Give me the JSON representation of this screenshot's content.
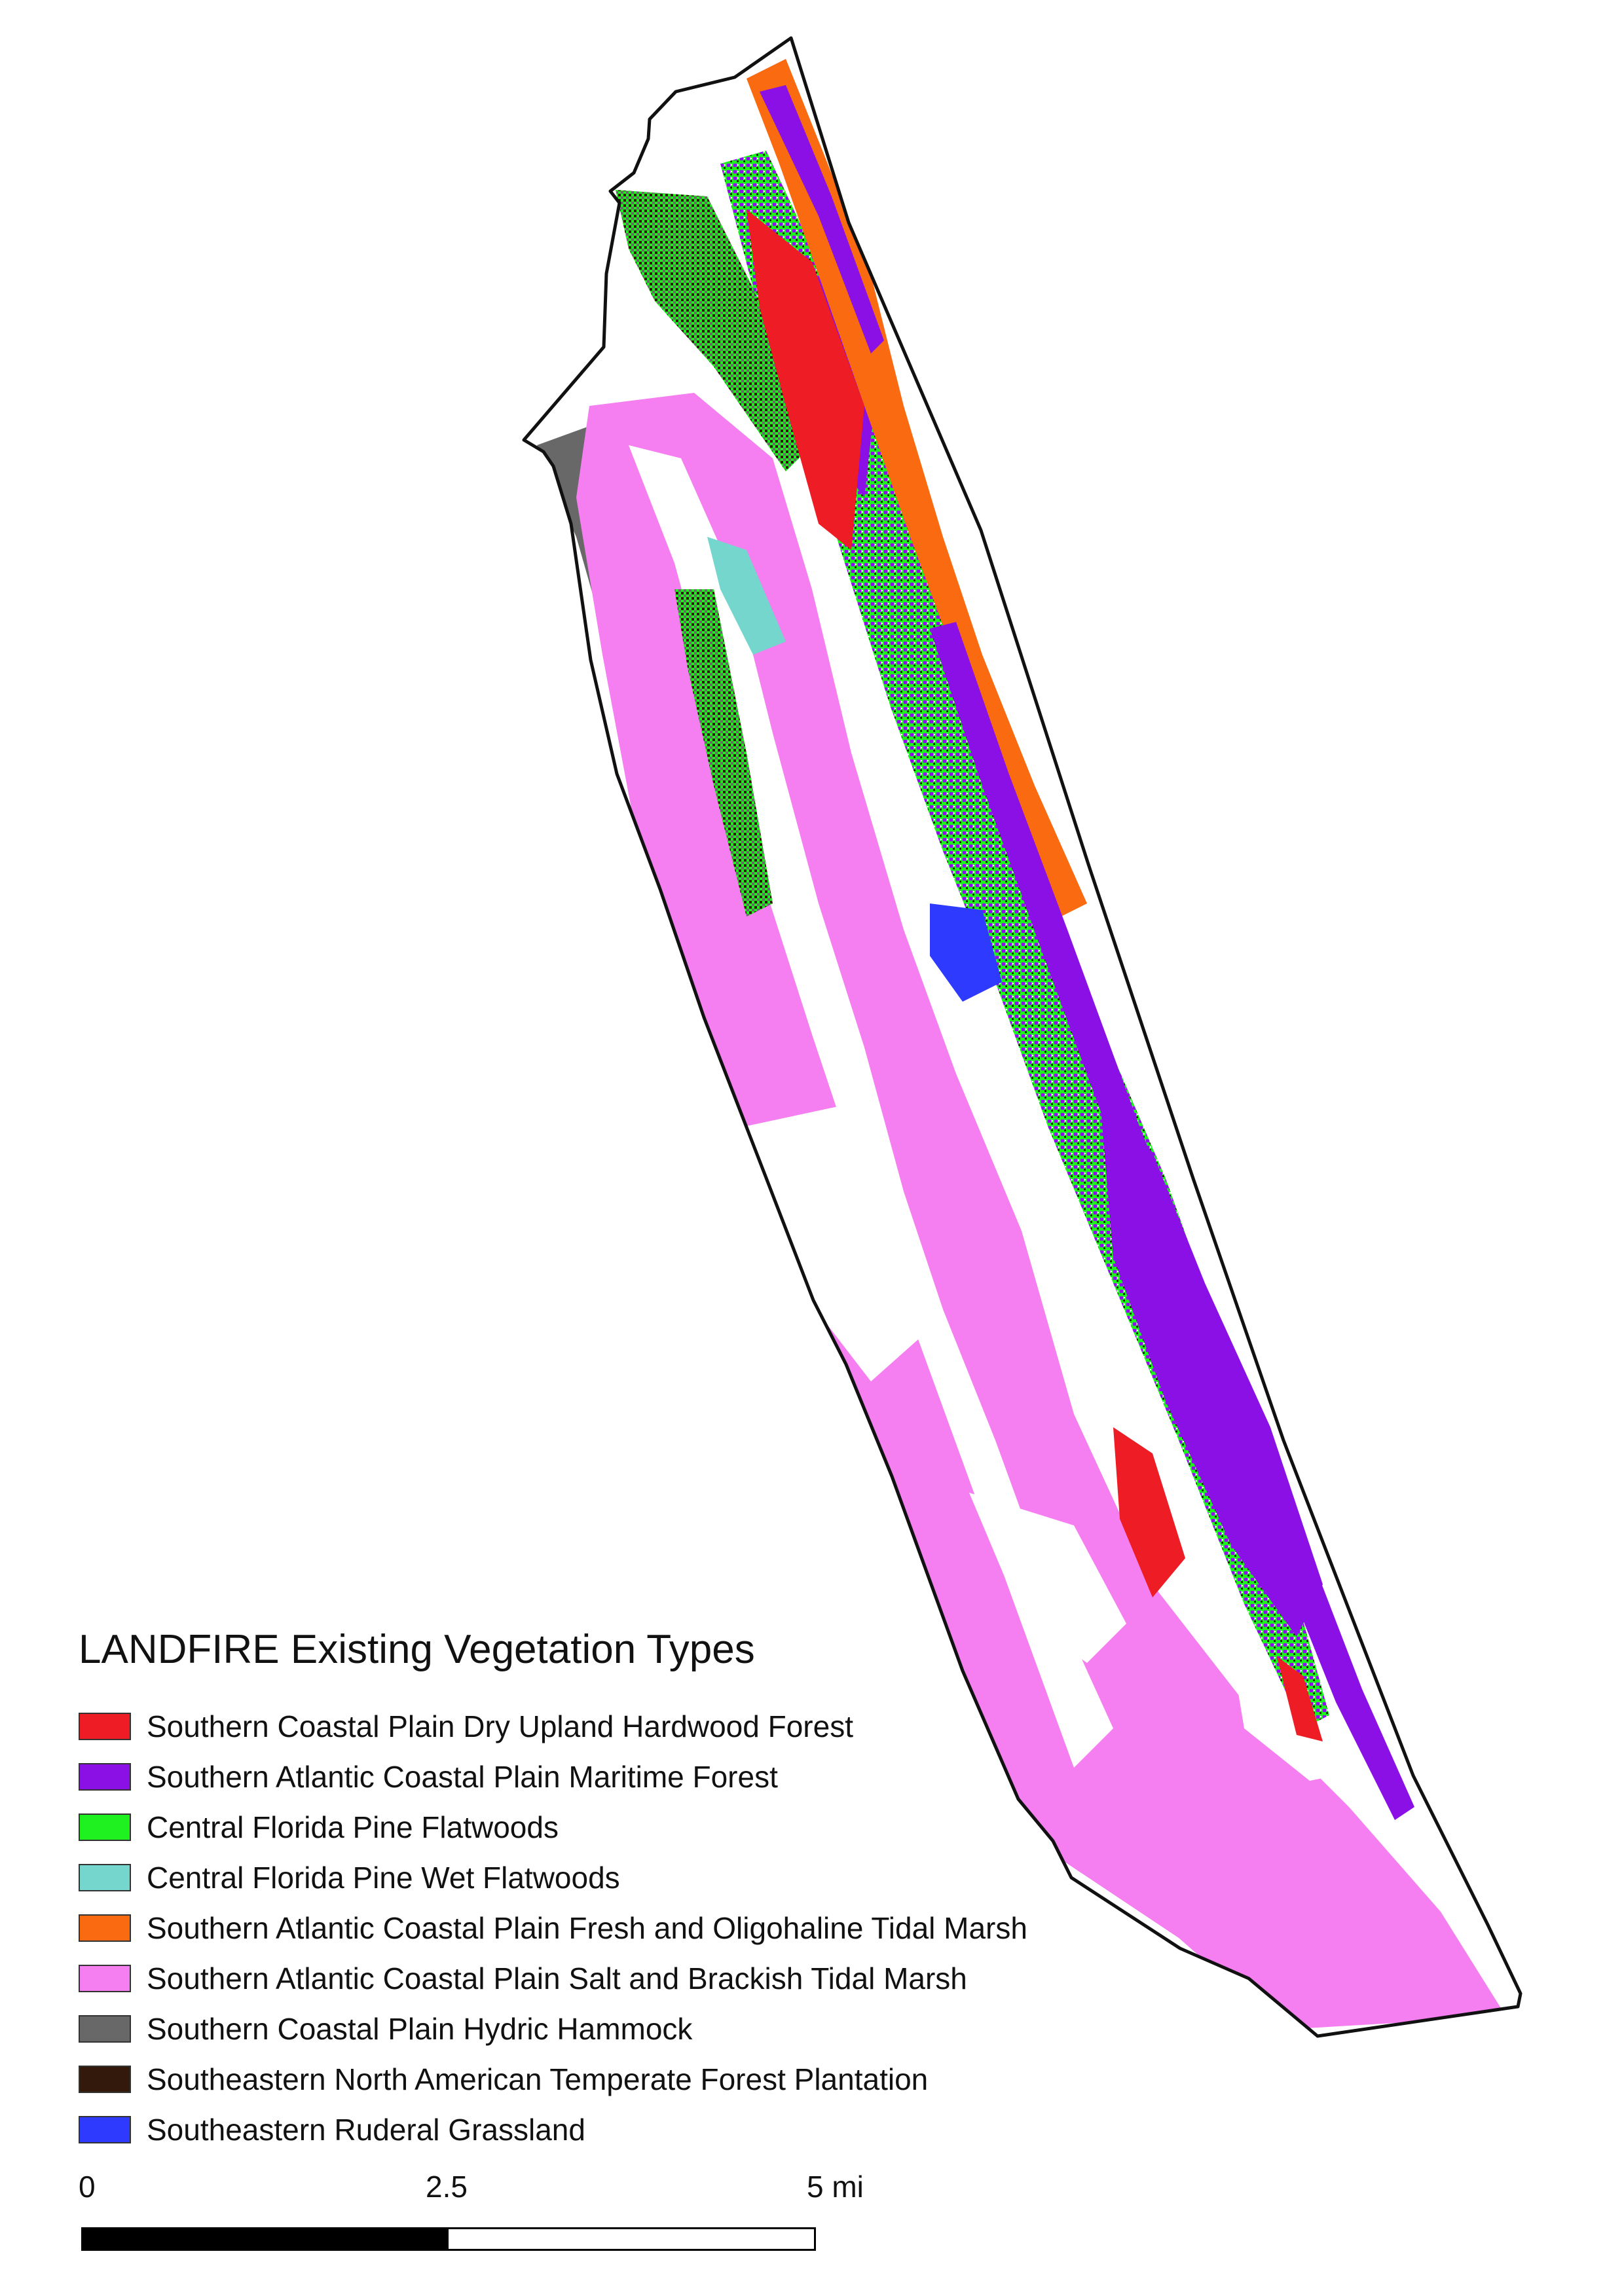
{
  "legend": {
    "title": "LANDFIRE Existing Vegetation Types",
    "items": [
      {
        "label": "Southern Coastal Plain Dry Upland Hardwood Forest",
        "color": "#ee1c25"
      },
      {
        "label": "Southern Atlantic Coastal Plain Maritime Forest",
        "color": "#8a10e6"
      },
      {
        "label": "Central Florida Pine Flatwoods",
        "color": "#1ff01f"
      },
      {
        "label": "Central Florida Pine Wet Flatwoods",
        "color": "#74d6cc"
      },
      {
        "label": "Southern Atlantic Coastal Plain Fresh and Oligohaline Tidal Marsh",
        "color": "#fa6a10"
      },
      {
        "label": "Southern Atlantic Coastal Plain Salt and Brackish Tidal Marsh",
        "color": "#f57ff0"
      },
      {
        "label": "Southern Coastal Plain Hydric Hammock",
        "color": "#686868"
      },
      {
        "label": "Southeastern North American Temperate Forest Plantation",
        "color": "#33180c"
      },
      {
        "label": "Southeastern Ruderal Grassland",
        "color": "#2f3aff"
      }
    ]
  },
  "scalebar": {
    "label_start": "0",
    "label_mid": "2.5",
    "label_end": "5 mi"
  }
}
